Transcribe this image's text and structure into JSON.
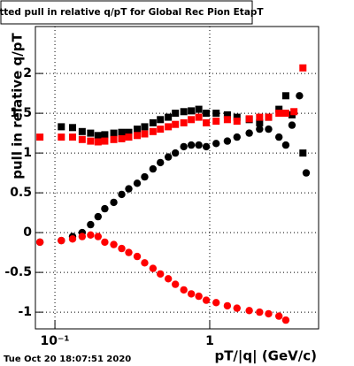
{
  "chart_data": {
    "type": "scatter",
    "title": "Fitted pull in relative q/pT for Global Rec Pion EtapT",
    "x_label": "pT/|q| (GeV/c)",
    "y_label": "pull in relative q/pT",
    "footer": "Tue Oct 20 18:07:51 2020",
    "log_x": true,
    "grid": true,
    "xlim": [
      0.0748,
      5.05
    ],
    "ylim": [
      -1.21,
      2.59
    ],
    "xticks": [
      {
        "value": 0.1,
        "label": "10⁻¹"
      },
      1
    ],
    "yticks": [
      -1,
      -0.5,
      0,
      0.5,
      1,
      1.5,
      2
    ],
    "series": [
      {
        "color": "#000000",
        "marker": "square",
        "x": [
          0.11,
          0.13,
          0.15,
          0.17,
          0.19,
          0.21,
          0.24,
          0.27,
          0.3,
          0.34,
          0.38,
          0.43,
          0.48,
          0.54,
          0.6,
          0.68,
          0.76,
          0.85,
          0.95,
          1.1,
          1.3,
          1.5,
          1.8,
          2.1,
          2.4,
          2.8,
          3.1,
          3.4,
          4.0
        ],
        "values": [
          1.33,
          1.32,
          1.27,
          1.25,
          1.22,
          1.23,
          1.25,
          1.26,
          1.26,
          1.3,
          1.33,
          1.38,
          1.42,
          1.45,
          1.5,
          1.52,
          1.53,
          1.55,
          1.5,
          1.5,
          1.48,
          1.45,
          1.42,
          1.38,
          1.45,
          1.55,
          1.72,
          1.48,
          1.0
        ]
      },
      {
        "color": "#ff0000",
        "marker": "square",
        "x": [
          0.08,
          0.11,
          0.13,
          0.15,
          0.17,
          0.19,
          0.21,
          0.24,
          0.27,
          0.3,
          0.34,
          0.38,
          0.43,
          0.48,
          0.54,
          0.6,
          0.68,
          0.76,
          0.85,
          0.95,
          1.1,
          1.3,
          1.5,
          1.8,
          2.1,
          2.4,
          2.8,
          3.1,
          3.5,
          4.0
        ],
        "values": [
          1.2,
          1.2,
          1.2,
          1.17,
          1.15,
          1.14,
          1.15,
          1.17,
          1.18,
          1.2,
          1.22,
          1.24,
          1.27,
          1.3,
          1.33,
          1.36,
          1.38,
          1.42,
          1.45,
          1.38,
          1.4,
          1.42,
          1.4,
          1.43,
          1.45,
          1.45,
          1.5,
          1.5,
          1.52,
          2.07
        ]
      },
      {
        "color": "#000000",
        "marker": "circle",
        "x": [
          0.08,
          0.11,
          0.13,
          0.15,
          0.17,
          0.19,
          0.21,
          0.24,
          0.27,
          0.3,
          0.34,
          0.38,
          0.43,
          0.48,
          0.54,
          0.6,
          0.68,
          0.76,
          0.85,
          0.95,
          1.1,
          1.3,
          1.5,
          1.8,
          2.1,
          2.4,
          2.8,
          3.1,
          3.4,
          3.8,
          4.2
        ],
        "values": [
          -0.12,
          -0.1,
          -0.05,
          0.0,
          0.1,
          0.2,
          0.3,
          0.38,
          0.48,
          0.55,
          0.62,
          0.7,
          0.8,
          0.88,
          0.95,
          1.0,
          1.08,
          1.1,
          1.1,
          1.08,
          1.12,
          1.15,
          1.2,
          1.25,
          1.3,
          1.3,
          1.2,
          1.1,
          1.35,
          1.72,
          0.75
        ]
      },
      {
        "color": "#ff0000",
        "marker": "circle",
        "x": [
          0.08,
          0.11,
          0.13,
          0.15,
          0.17,
          0.19,
          0.21,
          0.24,
          0.27,
          0.3,
          0.34,
          0.38,
          0.43,
          0.48,
          0.54,
          0.6,
          0.68,
          0.76,
          0.85,
          0.95,
          1.1,
          1.3,
          1.5,
          1.8,
          2.1,
          2.4,
          2.8,
          3.1
        ],
        "values": [
          -0.12,
          -0.1,
          -0.08,
          -0.05,
          -0.03,
          -0.05,
          -0.12,
          -0.15,
          -0.2,
          -0.25,
          -0.3,
          -0.38,
          -0.45,
          -0.52,
          -0.58,
          -0.65,
          -0.72,
          -0.77,
          -0.8,
          -0.85,
          -0.88,
          -0.92,
          -0.95,
          -0.98,
          -1.0,
          -1.02,
          -1.05,
          -1.1
        ]
      }
    ]
  }
}
